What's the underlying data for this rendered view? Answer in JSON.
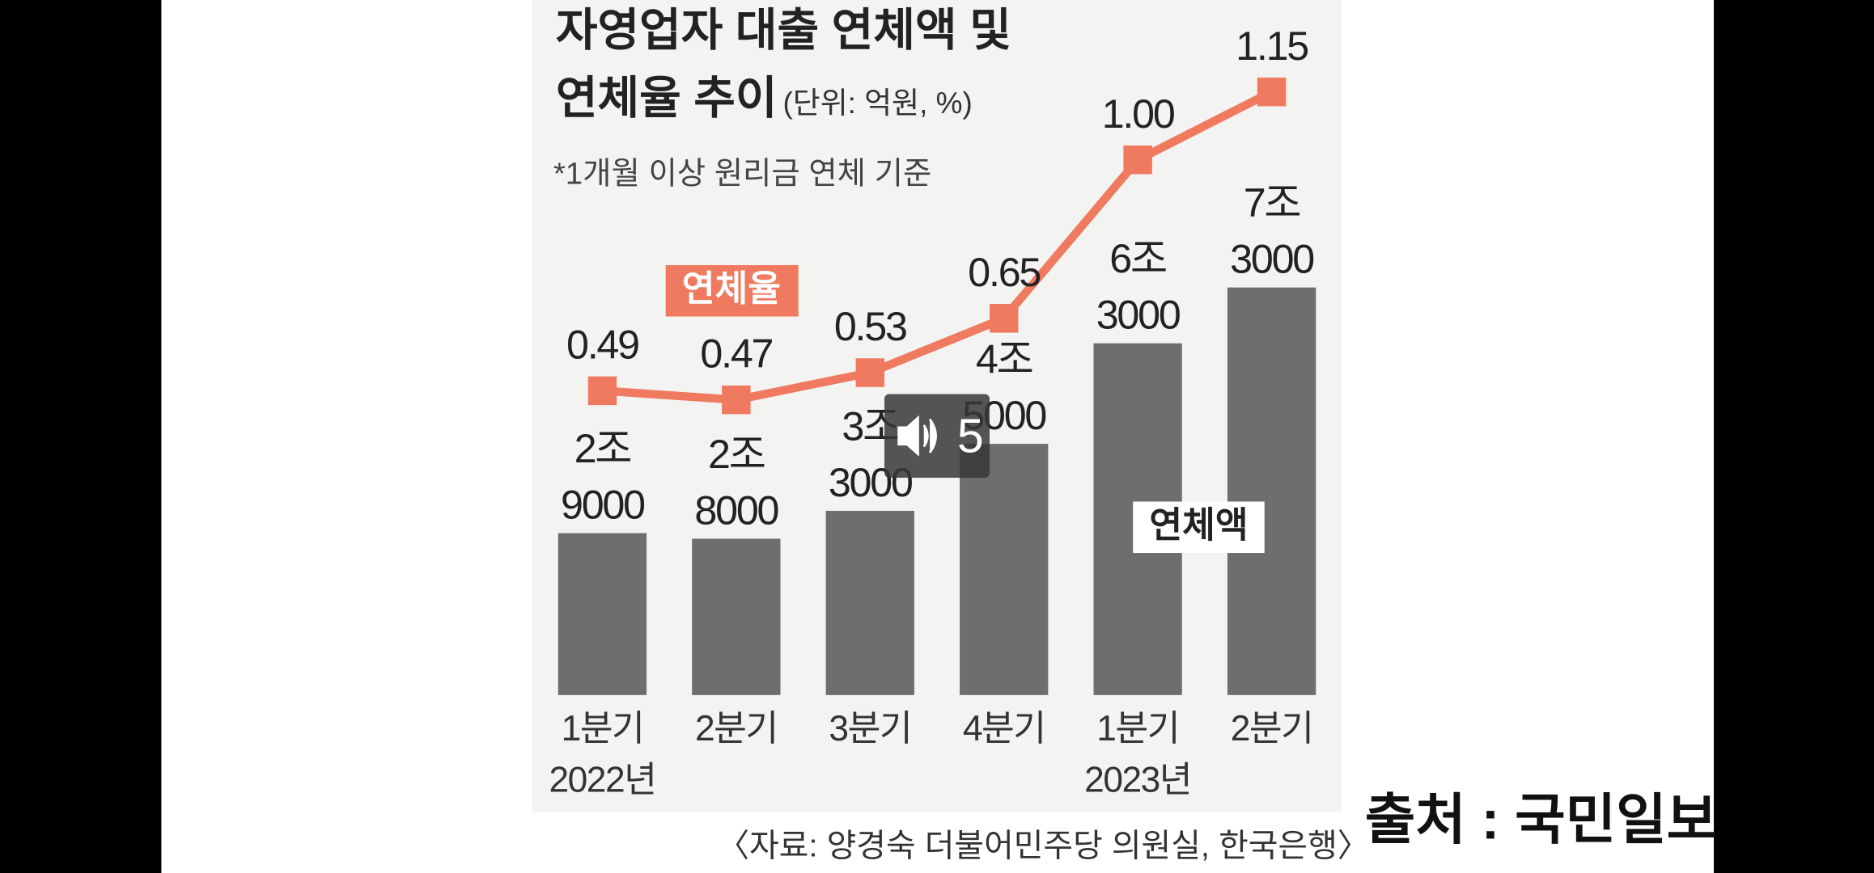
{
  "chart_data": {
    "type": "bar-line",
    "title": "자영업자 대출 연체액 및\n연체율 추이",
    "subtitle": "(단위: 억원, %)",
    "note": "*1개월 이상 원리금 연체 기준",
    "source": "〈자료: 양경숙 더불어민주당 의원실, 한국은행〉",
    "categories": [
      "1분기\n2022년",
      "2분기",
      "3분기",
      "4분기",
      "1분기\n2023년",
      "2분기"
    ],
    "series": [
      {
        "name": "연체액",
        "type": "bar",
        "color": "#6e6e6e",
        "values": [
          29000,
          28000,
          33000,
          45000,
          63000,
          73000
        ],
        "value_labels": [
          "2조\n9000",
          "2조\n8000",
          "3조\n3000",
          "4조\n5000",
          "6조\n3000",
          "7조\n3000"
        ]
      },
      {
        "name": "연체율",
        "type": "line",
        "axis": "y2",
        "color": "#f07a60",
        "values": [
          0.49,
          0.47,
          0.53,
          0.65,
          1.0,
          1.15
        ],
        "value_labels": [
          "0.49",
          "0.47",
          "0.53",
          "0.65",
          "1.00",
          "1.15"
        ]
      }
    ],
    "ylim": [
      0,
      80000
    ],
    "y2lim": [
      0,
      1.2
    ]
  },
  "credit": "출처 : 국민일보",
  "player": {
    "counter": "5"
  }
}
